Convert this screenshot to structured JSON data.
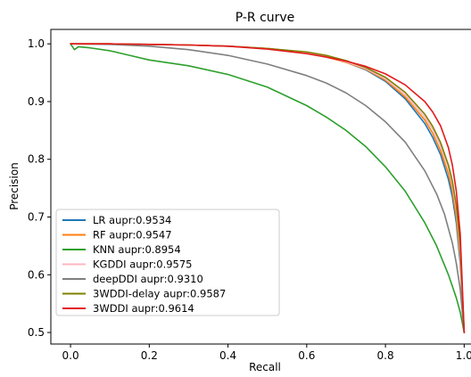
{
  "chart_data": {
    "type": "line",
    "title": "P-R curve",
    "xlabel": "Recall",
    "ylabel": "Precision",
    "xlim": [
      -0.05,
      1.04
    ],
    "ylim": [
      0.48,
      1.025
    ],
    "xticks": [
      0.0,
      0.2,
      0.4,
      0.6,
      0.8,
      1.0
    ],
    "xtick_labels": [
      "0.0",
      "0.2",
      "0.4",
      "0.6",
      "0.8",
      "1.0"
    ],
    "yticks": [
      0.5,
      0.6,
      0.7,
      0.8,
      0.9,
      1.0
    ],
    "ytick_labels": [
      "0.5",
      "0.6",
      "0.7",
      "0.8",
      "0.9",
      "1.0"
    ],
    "grid": false,
    "legend_position": "lower-left",
    "series": [
      {
        "name": "LR aupr:0.9534",
        "color": "#1f77b4",
        "x": [
          0.0,
          0.1,
          0.2,
          0.3,
          0.4,
          0.5,
          0.6,
          0.65,
          0.7,
          0.75,
          0.8,
          0.85,
          0.9,
          0.92,
          0.94,
          0.96,
          0.97,
          0.98,
          0.99,
          1.0
        ],
        "y": [
          1.0,
          1.0,
          0.999,
          0.998,
          0.996,
          0.992,
          0.985,
          0.978,
          0.968,
          0.955,
          0.935,
          0.905,
          0.862,
          0.838,
          0.808,
          0.765,
          0.735,
          0.69,
          0.62,
          0.5
        ]
      },
      {
        "name": "RF aupr:0.9547",
        "color": "#ff7f0e",
        "x": [
          0.0,
          0.1,
          0.2,
          0.3,
          0.4,
          0.5,
          0.6,
          0.65,
          0.7,
          0.75,
          0.8,
          0.85,
          0.9,
          0.92,
          0.94,
          0.96,
          0.97,
          0.98,
          0.99,
          1.0
        ],
        "y": [
          1.0,
          1.0,
          0.999,
          0.998,
          0.996,
          0.992,
          0.984,
          0.977,
          0.968,
          0.956,
          0.937,
          0.908,
          0.868,
          0.845,
          0.815,
          0.775,
          0.745,
          0.7,
          0.63,
          0.5
        ]
      },
      {
        "name": "KNN aupr:0.8954",
        "color": "#2ca02c",
        "x": [
          0.0,
          0.01,
          0.02,
          0.05,
          0.1,
          0.15,
          0.2,
          0.3,
          0.4,
          0.5,
          0.6,
          0.65,
          0.7,
          0.75,
          0.8,
          0.85,
          0.9,
          0.93,
          0.96,
          0.98,
          0.99,
          1.0
        ],
        "y": [
          1.0,
          0.99,
          0.995,
          0.993,
          0.988,
          0.98,
          0.972,
          0.962,
          0.947,
          0.925,
          0.893,
          0.873,
          0.85,
          0.822,
          0.787,
          0.745,
          0.69,
          0.65,
          0.6,
          0.56,
          0.535,
          0.5
        ]
      },
      {
        "name": "KGDDI aupr:0.9575",
        "color": "#ffb6c1",
        "x": [
          0.0,
          0.1,
          0.2,
          0.3,
          0.4,
          0.5,
          0.6,
          0.65,
          0.7,
          0.75,
          0.8,
          0.85,
          0.9,
          0.92,
          0.94,
          0.96,
          0.97,
          0.98,
          0.99,
          1.0
        ],
        "y": [
          1.0,
          1.0,
          0.999,
          0.998,
          0.996,
          0.992,
          0.985,
          0.978,
          0.969,
          0.957,
          0.939,
          0.912,
          0.873,
          0.852,
          0.823,
          0.785,
          0.755,
          0.712,
          0.64,
          0.5
        ]
      },
      {
        "name": "deepDDI aupr:0.9310",
        "color": "#7f7f7f",
        "x": [
          0.0,
          0.1,
          0.2,
          0.3,
          0.4,
          0.5,
          0.6,
          0.65,
          0.7,
          0.75,
          0.8,
          0.85,
          0.9,
          0.93,
          0.95,
          0.97,
          0.98,
          0.99,
          1.0
        ],
        "y": [
          1.0,
          0.999,
          0.996,
          0.99,
          0.98,
          0.965,
          0.945,
          0.932,
          0.915,
          0.893,
          0.865,
          0.83,
          0.78,
          0.74,
          0.705,
          0.655,
          0.62,
          0.575,
          0.5
        ]
      },
      {
        "name": "3WDDI-delay aupr:0.9587",
        "color": "#808000",
        "x": [
          0.0,
          0.1,
          0.2,
          0.3,
          0.4,
          0.5,
          0.6,
          0.65,
          0.7,
          0.75,
          0.8,
          0.85,
          0.9,
          0.92,
          0.94,
          0.96,
          0.97,
          0.98,
          0.99,
          1.0
        ],
        "y": [
          1.0,
          1.0,
          0.999,
          0.998,
          0.996,
          0.992,
          0.986,
          0.98,
          0.971,
          0.959,
          0.942,
          0.916,
          0.878,
          0.857,
          0.829,
          0.79,
          0.762,
          0.72,
          0.65,
          0.5
        ]
      },
      {
        "name": "3WDDI aupr:0.9614",
        "color": "#e31a1c",
        "x": [
          0.0,
          0.1,
          0.2,
          0.3,
          0.4,
          0.5,
          0.6,
          0.65,
          0.7,
          0.75,
          0.8,
          0.85,
          0.9,
          0.92,
          0.94,
          0.96,
          0.97,
          0.98,
          0.99,
          1.0
        ],
        "y": [
          1.0,
          1.0,
          0.999,
          0.998,
          0.996,
          0.991,
          0.983,
          0.977,
          0.97,
          0.961,
          0.948,
          0.929,
          0.9,
          0.882,
          0.858,
          0.82,
          0.79,
          0.745,
          0.67,
          0.5
        ]
      }
    ]
  }
}
